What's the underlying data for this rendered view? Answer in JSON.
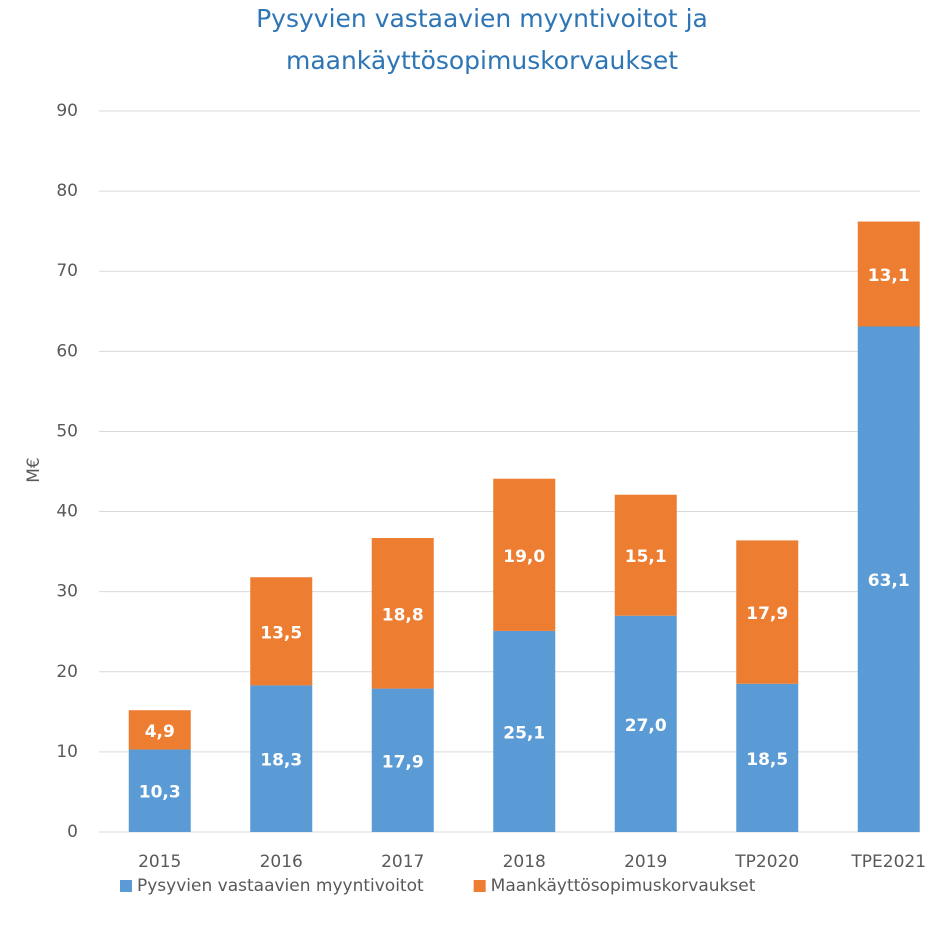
{
  "chart_data": {
    "type": "stacked_bar",
    "title": [
      "Pysyvien vastaavien myyntivoitot ja",
      "maankäyttösopimuskorvaukset"
    ],
    "ylabel": "M€",
    "categories": [
      "2015",
      "2016",
      "2017",
      "2018",
      "2019",
      "TP2020",
      "TPE2021"
    ],
    "series": [
      {
        "name": "Pysyvien vastaavien myyntivoitot",
        "color": "#5b9bd5",
        "values": [
          10.3,
          18.3,
          17.9,
          25.1,
          27.0,
          18.5,
          63.1
        ],
        "value_labels": [
          "10,3",
          "18,3",
          "17,9",
          "25,1",
          "27,0",
          "18,5",
          "63,1"
        ]
      },
      {
        "name": "Maankäyttösopimuskorvaukset",
        "color": "#ed7d31",
        "values": [
          4.9,
          13.5,
          18.8,
          19.0,
          15.1,
          17.9,
          13.1
        ],
        "value_labels": [
          "4,9",
          "13,5",
          "18,8",
          "19,0",
          "15,1",
          "17,9",
          "13,1"
        ]
      }
    ],
    "ylim": [
      0,
      90
    ],
    "yticks": [
      0,
      10,
      20,
      30,
      40,
      50,
      60,
      70,
      80,
      90
    ],
    "grid": true,
    "legend": "bottom"
  }
}
